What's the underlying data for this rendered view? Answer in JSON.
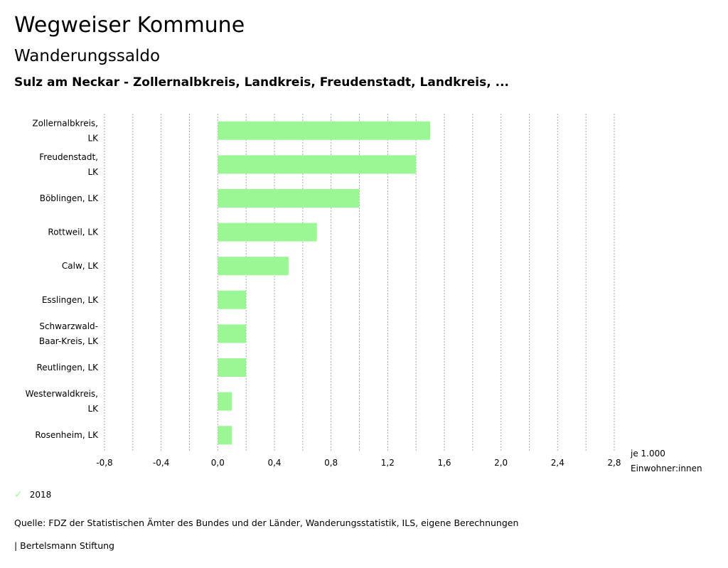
{
  "header": {
    "title": "Wegweiser Kommune",
    "subtitle": "Wanderungssaldo",
    "region": "Sulz am Neckar - Zollernalbkreis, Landkreis, Freudenstadt, Landkreis, ..."
  },
  "chart_data": {
    "type": "bar",
    "orientation": "horizontal",
    "categories": [
      [
        "Zollernalbkreis,",
        "LK"
      ],
      [
        "Freudenstadt,",
        "LK"
      ],
      [
        "Böblingen, LK"
      ],
      [
        "Rottweil, LK"
      ],
      [
        "Calw, LK"
      ],
      [
        "Esslingen, LK"
      ],
      [
        "Schwarzwald-",
        "Baar-Kreis, LK"
      ],
      [
        "Reutlingen, LK"
      ],
      [
        "Westerwaldkreis,",
        "LK"
      ],
      [
        "Rosenheim, LK"
      ]
    ],
    "series": [
      {
        "name": "2018",
        "color": "#99f893",
        "values": [
          1.5,
          1.4,
          1.0,
          0.7,
          0.5,
          0.2,
          0.2,
          0.2,
          0.1,
          0.1
        ]
      }
    ],
    "xlim": [
      -0.8,
      2.8
    ],
    "xticks": [
      "-0,8",
      "-0,4",
      "0,0",
      "0,4",
      "0,8",
      "1,2",
      "1,6",
      "2,0",
      "2,4",
      "2,8"
    ],
    "xtick_values": [
      -0.8,
      -0.4,
      0,
      0.4,
      0.8,
      1.2,
      1.6,
      2.0,
      2.4,
      2.8
    ],
    "grid_step": 0.2,
    "unit_label": [
      "je 1.000",
      "Einwohner:innen"
    ],
    "legend_position": "bottom-left"
  },
  "legend": {
    "label": "2018"
  },
  "footer": {
    "source": "Quelle: FDZ der Statistischen Ämter des Bundes und der Länder, Wanderungsstatistik, ILS, eigene Berechnungen",
    "brand": "| Bertelsmann Stiftung"
  }
}
